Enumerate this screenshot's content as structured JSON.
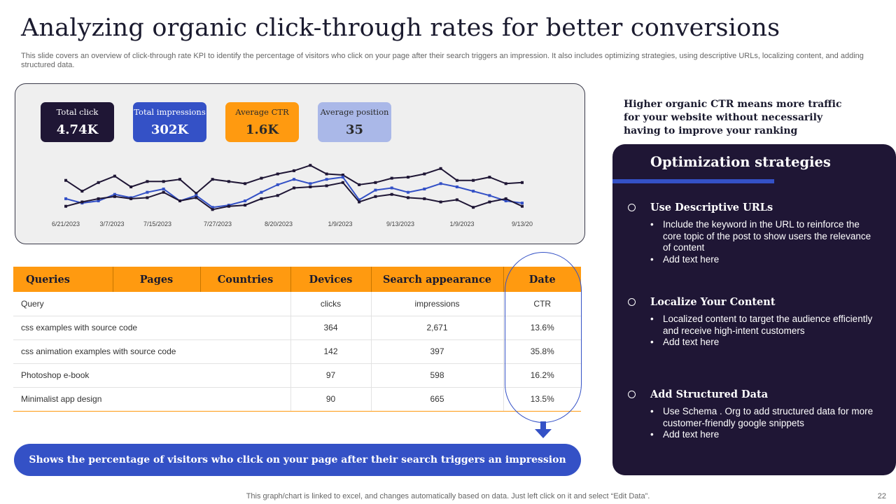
{
  "slide": {
    "title": "Analyzing organic click-through rates for better conversions",
    "subtitle": "This slide covers an overview of click-through rate KPI to identify the percentage of visitors who click on your page after their search triggers an impression. It also includes optimizing strategies, using descriptive URLs, localizing content, and adding structured data.",
    "footer": "This graph/chart is linked to excel, and changes automatically based on data. Just left click on it and select “Edit Data”.",
    "page_number": "22"
  },
  "kpis": [
    {
      "label": "Total click",
      "value": "4.74K"
    },
    {
      "label": "Total impressions",
      "value": "302K"
    },
    {
      "label": "Average CTR",
      "value": "1.6K"
    },
    {
      "label": "Average position",
      "value": "35"
    }
  ],
  "colors": {
    "dark": "#1f1635",
    "blue": "#3451c6",
    "orange": "#ff9a10",
    "light_blue": "#aab8e8"
  },
  "chart_data": {
    "type": "line",
    "x_tick_labels": [
      "6/21/2023",
      "3/7/2023",
      "7/15/2023",
      "7/27/2023",
      "8/20/2023",
      "1/9/2023",
      "9/13/2023",
      "1/9/2023",
      "9/13/20"
    ],
    "grid": false,
    "series": [
      {
        "color": "#1f1635",
        "values": [
          42,
          32,
          40,
          46,
          36,
          41,
          41,
          43,
          30,
          43,
          41,
          39,
          44,
          48,
          51,
          56,
          48,
          47,
          38,
          40,
          44,
          45,
          48,
          53,
          42,
          42,
          45,
          39,
          40
        ]
      },
      {
        "color": "#3451c6",
        "values": [
          25,
          21,
          23,
          29,
          26,
          31,
          34,
          23,
          28,
          17,
          19,
          23,
          31,
          38,
          43,
          39,
          43,
          45,
          24,
          33,
          35,
          31,
          34,
          39,
          36,
          32,
          28,
          23,
          21
        ]
      },
      {
        "color": "#1f1635",
        "values": [
          18,
          22,
          25,
          27,
          25,
          26,
          31,
          23,
          26,
          15,
          18,
          19,
          25,
          28,
          35,
          36,
          37,
          40,
          22,
          27,
          29,
          26,
          25,
          22,
          24,
          17,
          22,
          25,
          18
        ]
      }
    ]
  },
  "table": {
    "tabs": [
      "Queries",
      "Pages",
      "Countries",
      "Devices",
      "Search appearance",
      "Date"
    ],
    "columns": [
      "Query",
      "clicks",
      "impressions",
      "CTR"
    ],
    "rows": [
      {
        "query": "css examples with source code",
        "clicks": "364",
        "impressions": "2,671",
        "ctr": "13.6%"
      },
      {
        "query": "css  animation examples with source code",
        "clicks": "142",
        "impressions": "397",
        "ctr": "35.8%"
      },
      {
        "query": "Photoshop e-book",
        "clicks": "97",
        "impressions": "598",
        "ctr": "16.2%"
      },
      {
        "query": "Minimalist app design",
        "clicks": "90",
        "impressions": "665",
        "ctr": "13.5%"
      }
    ]
  },
  "banner": "Shows the percentage of visitors who click on your page after their search triggers an impression",
  "highlight": "Higher organic CTR means more traffic for your website without necessarily having to improve your ranking",
  "strategies": {
    "title": "Optimization strategies",
    "items": [
      {
        "heading": "Use Descriptive URLs",
        "bullets": [
          "Include the keyword in the URL to reinforce the core topic of the post to show users the relevance of content",
          "Add text here"
        ]
      },
      {
        "heading": "Localize Your Content",
        "bullets": [
          "Localized content to target the audience efficiently and receive high-intent customers",
          "Add text here"
        ]
      },
      {
        "heading": "Add Structured Data",
        "bullets": [
          "Use Schema . Org to add structured data for more customer-friendly google snippets",
          "Add text here"
        ]
      }
    ]
  }
}
